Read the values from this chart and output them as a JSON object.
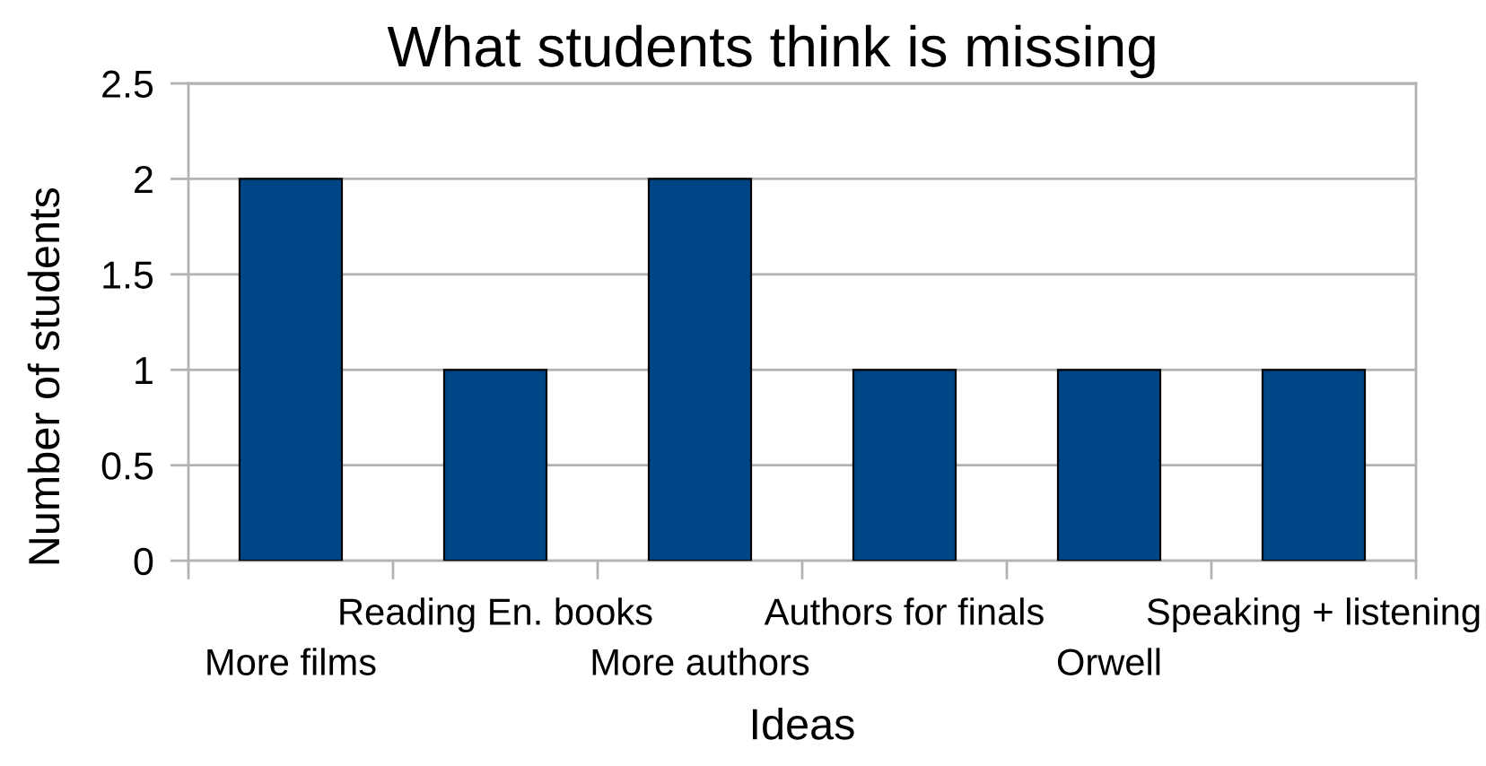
{
  "chart_data": {
    "type": "bar",
    "title": "What students think is missing",
    "xlabel": "Ideas",
    "ylabel": "Number of students",
    "categories": [
      "More films",
      "Reading En. books",
      "More authors",
      "Authors for finals",
      "Orwell",
      "Speaking + listening"
    ],
    "values": [
      2,
      1,
      2,
      1,
      1,
      1
    ],
    "color": "#004586",
    "ylim": [
      0,
      2.5
    ],
    "yticks": [
      0,
      0.5,
      1,
      1.5,
      2,
      2.5
    ],
    "grid": "y"
  }
}
